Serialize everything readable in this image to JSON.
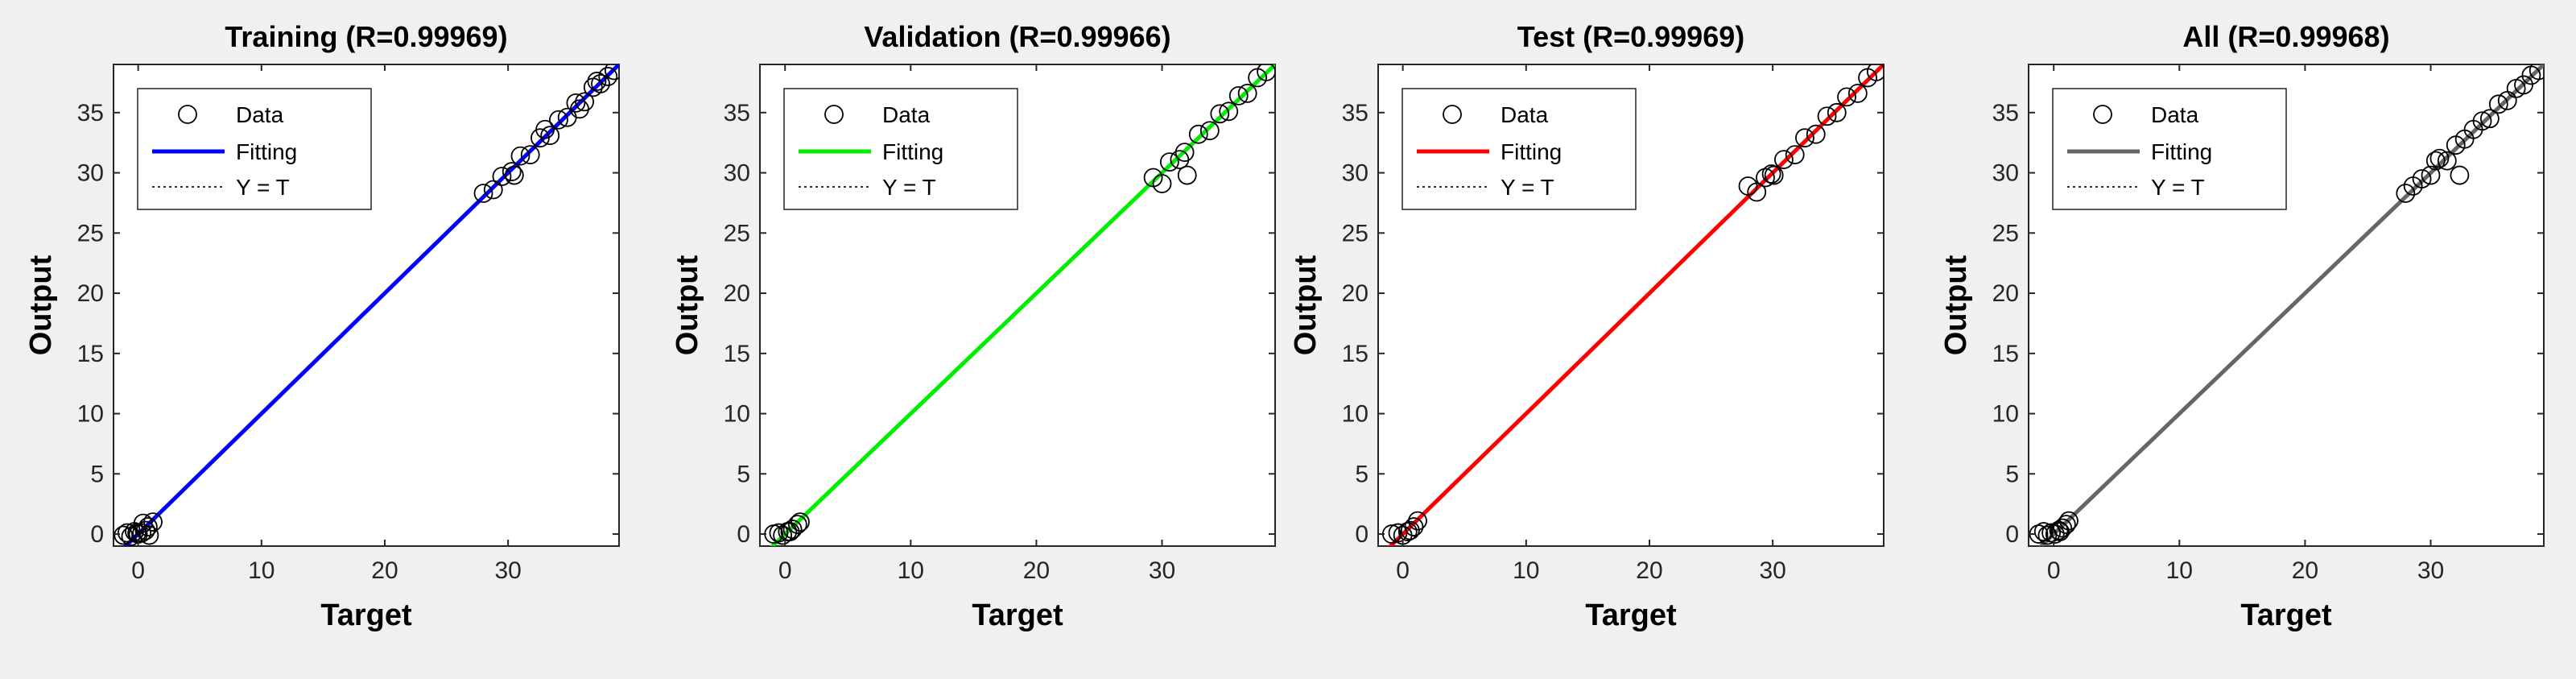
{
  "chart_data": [
    {
      "type": "scatter",
      "title": "Training (R=0.99969)",
      "xlabel": "Target",
      "ylabel": "Output",
      "xlim": [
        -2,
        39
      ],
      "ylim": [
        -1,
        39
      ],
      "xticks": [
        0,
        10,
        20,
        30
      ],
      "yticks": [
        0,
        5,
        10,
        15,
        20,
        25,
        30,
        35
      ],
      "legend": {
        "position": "top-left",
        "entries": [
          "Data",
          "Fitting",
          "Y = T"
        ]
      },
      "fit_color": "#0000ff",
      "fit_line": {
        "x": [
          -2,
          39
        ],
        "y": [
          -2,
          39
        ]
      },
      "series": [
        {
          "name": "Data",
          "x": [
            -1.2,
            -0.9,
            -0.6,
            -0.3,
            0,
            0.3,
            0.6,
            0.9,
            1.2,
            0.4,
            0.8,
            -0.1,
            28,
            28.8,
            29.5,
            30.3,
            31,
            31.8,
            32.6,
            33.4,
            34.1,
            34.8,
            35.5,
            36.2,
            36.9,
            37.5,
            38.1,
            38.6,
            30.5,
            33,
            35.8,
            37.2
          ],
          "y": [
            -0.1,
            0.1,
            -0.2,
            0.2,
            0.0,
            0.1,
            0.3,
            -0.1,
            1.0,
            0.9,
            0.6,
            0.1,
            28.3,
            28.6,
            29.7,
            30.1,
            31.4,
            31.5,
            32.9,
            33.1,
            34.4,
            34.6,
            35.8,
            35.9,
            37.1,
            37.4,
            38.0,
            38.5,
            29.8,
            33.6,
            35.3,
            37.6
          ]
        }
      ]
    },
    {
      "type": "scatter",
      "title": "Validation (R=0.99966)",
      "xlabel": "Target",
      "ylabel": "Output",
      "xlim": [
        -2,
        39
      ],
      "ylim": [
        -1,
        39
      ],
      "xticks": [
        0,
        10,
        20,
        30
      ],
      "yticks": [
        0,
        5,
        10,
        15,
        20,
        25,
        30,
        35
      ],
      "legend": {
        "position": "top-left",
        "entries": [
          "Data",
          "Fitting",
          "Y = T"
        ]
      },
      "fit_color": "#00ee00",
      "fit_line": {
        "x": [
          -2,
          39
        ],
        "y": [
          -2,
          39
        ]
      },
      "series": [
        {
          "name": "Data",
          "x": [
            -0.9,
            -0.5,
            -0.2,
            0.2,
            0.6,
            1.0,
            1.2,
            0.4,
            29.3,
            30.0,
            30.6,
            31.4,
            32.0,
            32.9,
            33.8,
            34.6,
            35.3,
            36.1,
            36.8,
            37.6,
            38.3,
            31.8
          ],
          "y": [
            0.0,
            0.1,
            -0.1,
            0.2,
            0.4,
            0.8,
            1.0,
            0.2,
            29.6,
            29.1,
            30.9,
            31.1,
            29.8,
            33.2,
            33.5,
            34.9,
            35.1,
            36.4,
            36.6,
            37.9,
            38.4,
            31.7
          ]
        }
      ]
    },
    {
      "type": "scatter",
      "title": "Test (R=0.99969)",
      "xlabel": "Target",
      "ylabel": "Output",
      "xlim": [
        -2,
        39
      ],
      "ylim": [
        -1,
        39
      ],
      "xticks": [
        0,
        10,
        20,
        30
      ],
      "yticks": [
        0,
        5,
        10,
        15,
        20,
        25,
        30,
        35
      ],
      "legend": {
        "position": "top-left",
        "entries": [
          "Data",
          "Fitting",
          "Y = T"
        ]
      },
      "fit_color": "#ff0000",
      "fit_line": {
        "x": [
          -2,
          39
        ],
        "y": [
          -2,
          39
        ]
      },
      "series": [
        {
          "name": "Data",
          "x": [
            -0.9,
            -0.4,
            0.0,
            0.4,
            0.9,
            1.2,
            0.6,
            28.0,
            28.7,
            29.4,
            30.1,
            30.9,
            31.8,
            32.6,
            33.5,
            34.4,
            35.2,
            36.0,
            36.9,
            37.7,
            38.4,
            29.9
          ],
          "y": [
            0.0,
            0.1,
            -0.1,
            0.2,
            0.6,
            1.1,
            0.3,
            28.9,
            28.4,
            29.6,
            29.8,
            31.1,
            31.5,
            32.9,
            33.2,
            34.7,
            35.0,
            36.3,
            36.6,
            37.9,
            38.4,
            29.9
          ]
        }
      ]
    },
    {
      "type": "scatter",
      "title": "All (R=0.99968)",
      "xlabel": "Target",
      "ylabel": "Output",
      "xlim": [
        -2,
        39
      ],
      "ylim": [
        -1,
        39
      ],
      "xticks": [
        0,
        10,
        20,
        30
      ],
      "yticks": [
        0,
        5,
        10,
        15,
        20,
        25,
        30,
        35
      ],
      "legend": {
        "position": "top-left",
        "entries": [
          "Data",
          "Fitting",
          "Y = T"
        ]
      },
      "fit_color": "#666666",
      "fit_line": {
        "x": [
          -2,
          39
        ],
        "y": [
          -2,
          39
        ]
      },
      "series": [
        {
          "name": "Data",
          "x": [
            -1.2,
            -0.8,
            -0.5,
            -0.2,
            0.1,
            0.4,
            0.7,
            1.0,
            1.2,
            0.5,
            28.0,
            28.6,
            29.3,
            30.0,
            30.7,
            31.3,
            32.0,
            32.7,
            33.4,
            34.1,
            34.7,
            35.4,
            36.1,
            36.8,
            37.4,
            38.0,
            38.6,
            32.3,
            30.4
          ],
          "y": [
            0.0,
            0.2,
            -0.1,
            0.1,
            0.0,
            0.3,
            0.5,
            0.8,
            1.1,
            0.2,
            28.3,
            28.9,
            29.5,
            29.8,
            31.2,
            31.0,
            32.3,
            32.8,
            33.6,
            34.3,
            34.5,
            35.7,
            36.0,
            37.0,
            37.3,
            38.1,
            38.5,
            29.8,
            31.0
          ]
        }
      ]
    }
  ]
}
